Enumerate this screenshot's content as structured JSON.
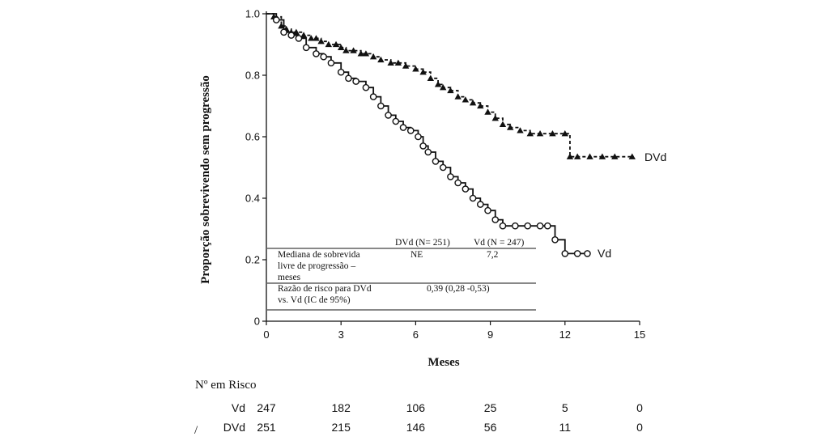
{
  "chart_data": {
    "type": "line",
    "title": "",
    "xlabel": "Meses",
    "ylabel": "Proporção sobrevivendo sem progressão",
    "xlim": [
      0,
      15
    ],
    "ylim": [
      0,
      1.0
    ],
    "x_ticks": [
      0,
      3,
      6,
      9,
      12,
      15
    ],
    "x_tick_labels": [
      "0",
      "3",
      "6",
      "9",
      "12",
      "15"
    ],
    "y_ticks": [
      0,
      0.2,
      0.4,
      0.6,
      0.8,
      1.0
    ],
    "y_tick_labels": [
      "0",
      "0.2",
      "0.4",
      "0.6",
      "0.8",
      "1.0"
    ],
    "grid": false,
    "series": [
      {
        "name": "DVd",
        "line_style": "dashed",
        "marker": "filled-triangle",
        "color": "#111111",
        "x": [
          0,
          0.3,
          0.6,
          0.8,
          1.0,
          1.2,
          1.5,
          1.8,
          2.0,
          2.2,
          2.5,
          2.8,
          3.0,
          3.2,
          3.5,
          3.8,
          4.0,
          4.3,
          4.6,
          5.0,
          5.3,
          5.6,
          6.0,
          6.3,
          6.6,
          6.9,
          7.1,
          7.4,
          7.7,
          8.0,
          8.3,
          8.6,
          8.9,
          9.2,
          9.5,
          9.8,
          10.2,
          10.6,
          11.0,
          11.5,
          12.0,
          12.2,
          12.5,
          13.0,
          13.5,
          14.0,
          14.7
        ],
        "y": [
          1.0,
          0.99,
          0.96,
          0.95,
          0.94,
          0.94,
          0.93,
          0.92,
          0.92,
          0.91,
          0.9,
          0.9,
          0.89,
          0.88,
          0.88,
          0.87,
          0.87,
          0.86,
          0.85,
          0.84,
          0.84,
          0.83,
          0.82,
          0.81,
          0.79,
          0.77,
          0.76,
          0.75,
          0.73,
          0.72,
          0.71,
          0.7,
          0.68,
          0.66,
          0.64,
          0.63,
          0.62,
          0.61,
          0.61,
          0.61,
          0.61,
          0.535,
          0.535,
          0.535,
          0.535,
          0.535,
          0.535
        ]
      },
      {
        "name": "Vd",
        "line_style": "solid",
        "marker": "open-circle",
        "color": "#111111",
        "x": [
          0,
          0.4,
          0.7,
          1.0,
          1.3,
          1.6,
          2.0,
          2.3,
          2.6,
          3.0,
          3.3,
          3.6,
          4.0,
          4.3,
          4.6,
          4.9,
          5.2,
          5.5,
          5.8,
          6.1,
          6.3,
          6.5,
          6.8,
          7.1,
          7.4,
          7.7,
          8.0,
          8.3,
          8.6,
          8.9,
          9.2,
          9.5,
          10.0,
          10.5,
          11.0,
          11.3,
          11.6,
          12.0,
          12.5,
          12.9
        ],
        "y": [
          1.0,
          0.98,
          0.94,
          0.93,
          0.92,
          0.89,
          0.87,
          0.86,
          0.84,
          0.81,
          0.79,
          0.78,
          0.76,
          0.73,
          0.7,
          0.67,
          0.65,
          0.63,
          0.62,
          0.6,
          0.57,
          0.55,
          0.52,
          0.5,
          0.47,
          0.45,
          0.43,
          0.4,
          0.38,
          0.36,
          0.33,
          0.31,
          0.31,
          0.31,
          0.31,
          0.31,
          0.265,
          0.22,
          0.22,
          0.22
        ]
      }
    ],
    "series_end_labels": [
      "DVd",
      "Vd"
    ],
    "table": {
      "col_headers": [
        "DVd (N= 251)",
        "Vd (N = 247)"
      ],
      "row1_label": [
        "Mediana de sobrevida",
        "livre de progressão –",
        "meses"
      ],
      "row1_values": [
        "NE",
        "7,2"
      ],
      "row2_label": [
        "Razão de risco para DVd",
        "vs. Vd (IC de 95%)"
      ],
      "row2_value": "0,39 (0,28 -0,53)"
    },
    "at_risk": {
      "title": "Nº em Risco",
      "rows": [
        {
          "label": "Vd",
          "values": [
            "247",
            "182",
            "106",
            "25",
            "5",
            "0"
          ]
        },
        {
          "label": "DVd",
          "values": [
            "251",
            "215",
            "146",
            "56",
            "11",
            "0"
          ]
        }
      ],
      "stray_mark": "/"
    }
  }
}
